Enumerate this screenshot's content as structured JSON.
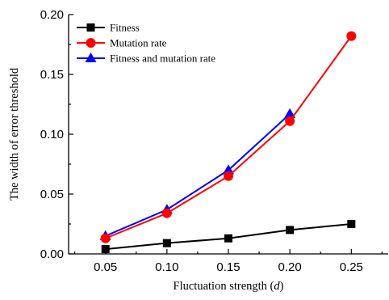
{
  "chart_data": {
    "type": "line",
    "x": [
      0.05,
      0.1,
      0.15,
      0.2,
      0.25
    ],
    "x_tick_labels": [
      "0.05",
      "0.10",
      "0.15",
      "0.20",
      "0.25"
    ],
    "y_tick_values": [
      0.0,
      0.05,
      0.1,
      0.15,
      0.2
    ],
    "y_tick_labels": [
      "0.00",
      "0.05",
      "0.10",
      "0.15",
      "0.20"
    ],
    "xlim": [
      0.02,
      0.28
    ],
    "ylim": [
      0.0,
      0.2
    ],
    "xlabel_prefix": "Fluctuation strength (",
    "xlabel_var": "d",
    "xlabel_suffix": ")",
    "ylabel": "The width of error threshold",
    "grid": false,
    "legend_position": "top-left",
    "series": [
      {
        "name": "Fitness",
        "color": "#000000",
        "marker": "square",
        "x": [
          0.05,
          0.1,
          0.15,
          0.2,
          0.25
        ],
        "values": [
          0.004,
          0.009,
          0.013,
          0.02,
          0.025
        ]
      },
      {
        "name": "Mutation rate",
        "color": "#ff0000",
        "marker": "circle",
        "x": [
          0.05,
          0.1,
          0.15,
          0.2,
          0.25
        ],
        "values": [
          0.013,
          0.034,
          0.065,
          0.111,
          0.182
        ]
      },
      {
        "name": "Fitness and mutation rate",
        "color": "#0000ff",
        "marker": "triangle",
        "x": [
          0.05,
          0.1,
          0.15,
          0.2
        ],
        "values": [
          0.015,
          0.037,
          0.07,
          0.117
        ]
      }
    ],
    "draw_order": [
      2,
      1,
      0
    ]
  }
}
